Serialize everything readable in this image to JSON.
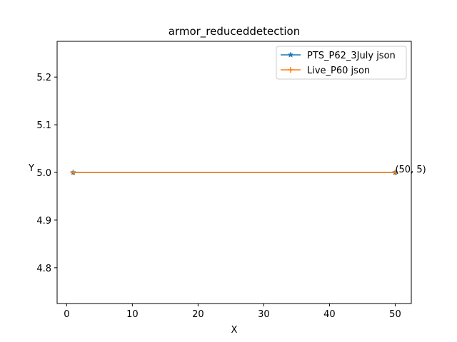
{
  "chart_data": {
    "type": "line",
    "title": "armor_reduceddetection",
    "xlabel": "X",
    "ylabel": "Y",
    "xlim": [
      -1.45,
      52.45
    ],
    "ylim": [
      4.725,
      5.275
    ],
    "xticks": [
      0,
      10,
      20,
      30,
      40,
      50
    ],
    "yticks": [
      4.8,
      4.9,
      5.0,
      5.1,
      5.2
    ],
    "ytick_labels": [
      "4.8",
      "4.9",
      "5.0",
      "5.1",
      "5.2"
    ],
    "grid": false,
    "legend_position": "top-right",
    "series": [
      {
        "name": "PTS_P62_3July json",
        "color": "#1f77b4",
        "marker": "star",
        "x": [
          1,
          50
        ],
        "y": [
          5,
          5
        ]
      },
      {
        "name": "Live_P60 json",
        "color": "#ff7f0e",
        "marker": "plus",
        "x": [
          1,
          50
        ],
        "y": [
          5,
          5
        ]
      }
    ],
    "annotations": [
      {
        "text": "(50, 5)",
        "x": 50,
        "y": 5
      }
    ]
  }
}
